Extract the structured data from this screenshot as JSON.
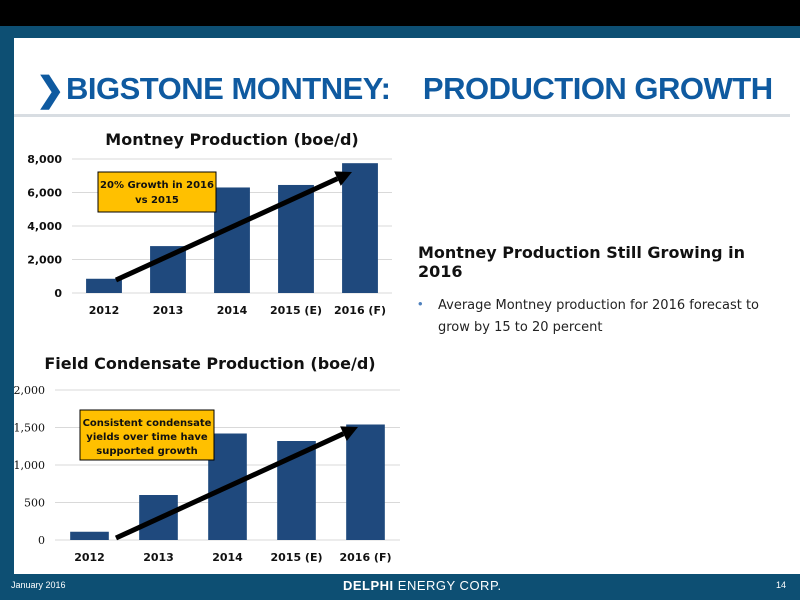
{
  "slide": {
    "chevron": "❯",
    "title": "BIGSTONE MONTNEY:    PRODUCTION GROWTH"
  },
  "bullets": {
    "heading": "Montney Production Still Growing in 2016",
    "items": [
      "Average Montney production for 2016 forecast to grow by 15 to 20 percent"
    ]
  },
  "footer": {
    "date": "January 2016",
    "logo_main": "DELPHI",
    "logo_rest": " ENERGY CORP.",
    "page": "14"
  },
  "colors": {
    "bar": "#1f497d",
    "annotation_fill": "#ffc000",
    "grid": "#d9d9d9",
    "arrow": "#000000"
  },
  "chart_data": [
    {
      "type": "bar",
      "title": "Montney Production (boe/d)",
      "categories": [
        "2012",
        "2013",
        "2014",
        "2015 (E)",
        "2016 (F)"
      ],
      "values": [
        850,
        2800,
        6300,
        6450,
        7750
      ],
      "ylim": [
        0,
        8000
      ],
      "yticks": [
        0,
        2000,
        4000,
        6000,
        8000
      ],
      "ytick_labels": [
        "0",
        "2,000",
        "4,000",
        "6,000",
        "8,000"
      ],
      "grid": true,
      "annotation": "20% Growth in 2016 vs 2015"
    },
    {
      "type": "bar",
      "title": "Field Condensate Production (boe/d)",
      "categories": [
        "2012",
        "2013",
        "2014",
        "2015 (E)",
        "2016 (F)"
      ],
      "values": [
        110,
        600,
        1420,
        1320,
        1540
      ],
      "ylim": [
        0,
        2000
      ],
      "yticks": [
        0,
        500,
        1000,
        1500,
        2000
      ],
      "ytick_labels": [
        "0",
        "500",
        "1,000",
        "1,500",
        "2,000"
      ],
      "grid": true,
      "annotation": "Consistent condensate yields over time have supported growth"
    }
  ]
}
